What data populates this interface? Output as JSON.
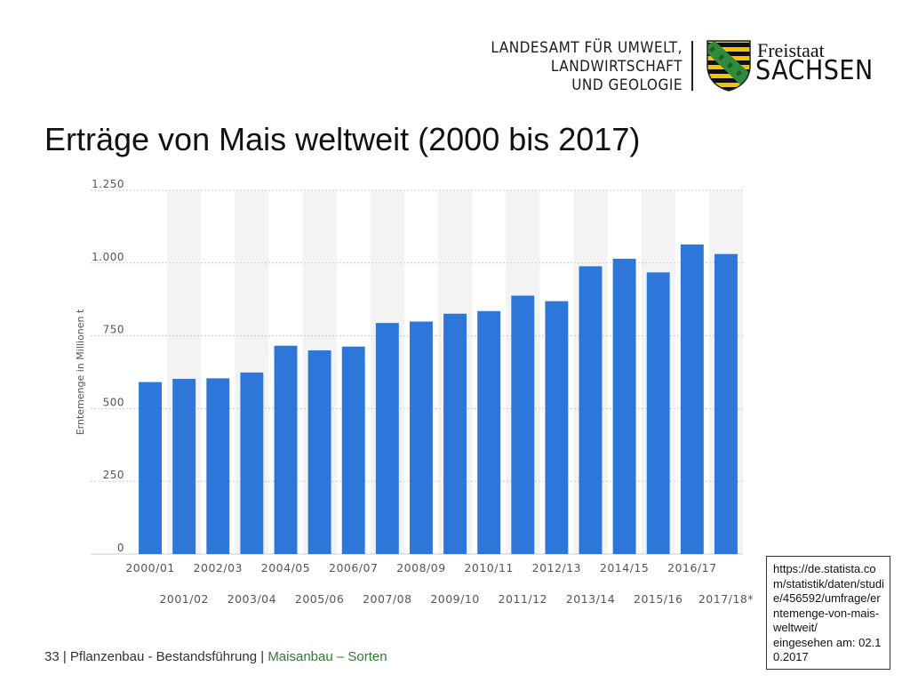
{
  "header": {
    "org_lines": [
      "LANDESAMT FÜR UMWELT,",
      "LANDWIRTSCHAFT",
      "UND GEOLOGIE"
    ],
    "brand_top": "Freistaat",
    "brand_main": "SACHSEN",
    "crest_icon": "saxony-coat-of-arms-icon"
  },
  "slide": {
    "title": "Erträge von Mais weltweit (2000 bis 2017)"
  },
  "source": {
    "text": "https://de.statista.com/statistik/daten/studie/456592/umfrage/erntemenge-von-mais-weltweit/\neingesehen am: 02.10.2017"
  },
  "footer": {
    "page_number": "33",
    "sep1": " | ",
    "section": "Pflanzenbau - Bestandsführung",
    "sep2": " | ",
    "topic": "Maisanbau – Sorten"
  },
  "colors": {
    "bar": "#2d77db",
    "stripe": "#f3f3f3",
    "grid": "#cccccc",
    "tick_text": "#555555",
    "footer_accent": "#2e7d32"
  },
  "chart_data": {
    "type": "bar",
    "title": "",
    "xlabel": "",
    "ylabel": "Erntemenge in Millionen t",
    "ylim": [
      0,
      1250
    ],
    "yticks": [
      0,
      250,
      500,
      750,
      1000,
      1250
    ],
    "ytick_labels": [
      "0",
      "250",
      "500",
      "750",
      "1.000",
      "1.250"
    ],
    "grid": true,
    "alternating_column_shading": true,
    "categories": [
      "2000/01",
      "2001/02",
      "2002/03",
      "2003/04",
      "2004/05",
      "2005/06",
      "2006/07",
      "2007/08",
      "2008/09",
      "2009/10",
      "2010/11",
      "2011/12",
      "2012/13",
      "2013/14",
      "2014/15",
      "2015/16",
      "2016/17",
      "2017/18*"
    ],
    "values": [
      591,
      602,
      604,
      624,
      716,
      700,
      713,
      794,
      799,
      826,
      835,
      888,
      869,
      989,
      1015,
      968,
      1064,
      1031
    ],
    "label_rows": "alternating two rows (odd categories on first row, even on second row)"
  }
}
